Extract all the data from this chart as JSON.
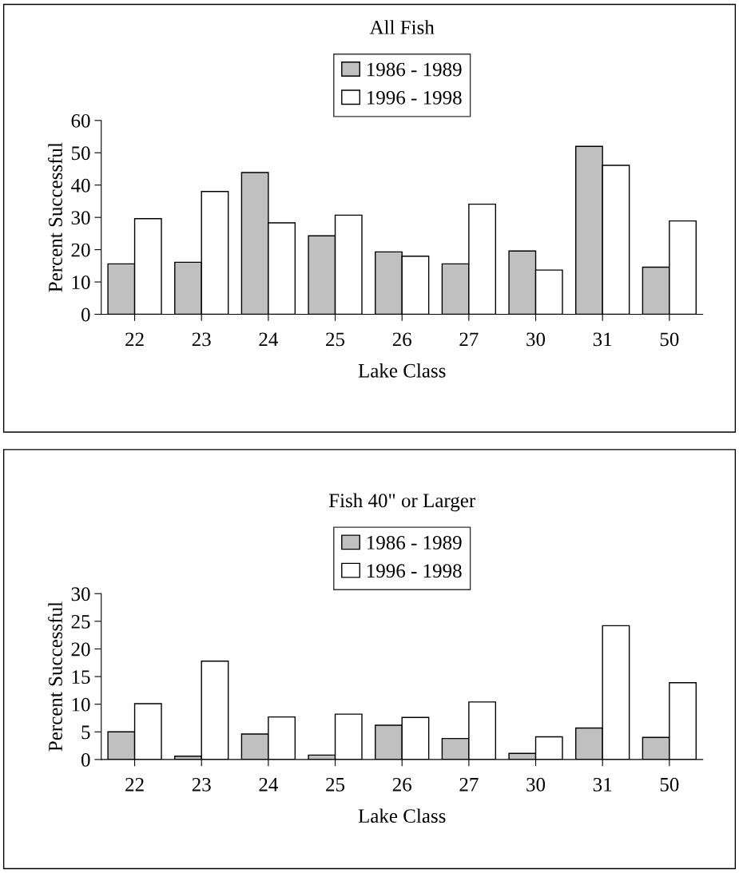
{
  "chart_data": [
    {
      "type": "bar",
      "title": "All Fish",
      "xlabel": "Lake Class",
      "ylabel": "Percent Successful",
      "categories": [
        "22",
        "23",
        "24",
        "25",
        "26",
        "27",
        "30",
        "31",
        "50"
      ],
      "series": [
        {
          "name": "1986 - 1989",
          "color": "#c0c0c0",
          "values": [
            15.6,
            16.1,
            43.9,
            24.3,
            19.3,
            15.6,
            19.6,
            52,
            14.6
          ]
        },
        {
          "name": "1996 - 1998",
          "color": "#ffffff",
          "values": [
            29.6,
            38,
            28.3,
            30.7,
            18,
            34.1,
            13.7,
            46.1,
            28.9
          ]
        }
      ],
      "ylim": [
        0,
        60
      ],
      "yticks": [
        0,
        10,
        20,
        30,
        40,
        50,
        60
      ],
      "grid": false,
      "legend": "top"
    },
    {
      "type": "bar",
      "title": "Fish 40\" or Larger",
      "xlabel": "Lake Class",
      "ylabel": "Percent Successful",
      "categories": [
        "22",
        "23",
        "24",
        "25",
        "26",
        "27",
        "30",
        "31",
        "50"
      ],
      "series": [
        {
          "name": "1986 - 1989",
          "color": "#c0c0c0",
          "values": [
            5,
            0.6,
            4.6,
            0.8,
            6.2,
            3.8,
            1.1,
            5.7,
            4
          ]
        },
        {
          "name": "1996 - 1998",
          "color": "#ffffff",
          "values": [
            10.1,
            17.8,
            7.7,
            8.2,
            7.6,
            10.4,
            4.1,
            24.2,
            13.9
          ]
        }
      ],
      "ylim": [
        0,
        30
      ],
      "yticks": [
        0,
        5,
        10,
        15,
        20,
        25,
        30
      ],
      "grid": false,
      "legend": "top"
    }
  ]
}
